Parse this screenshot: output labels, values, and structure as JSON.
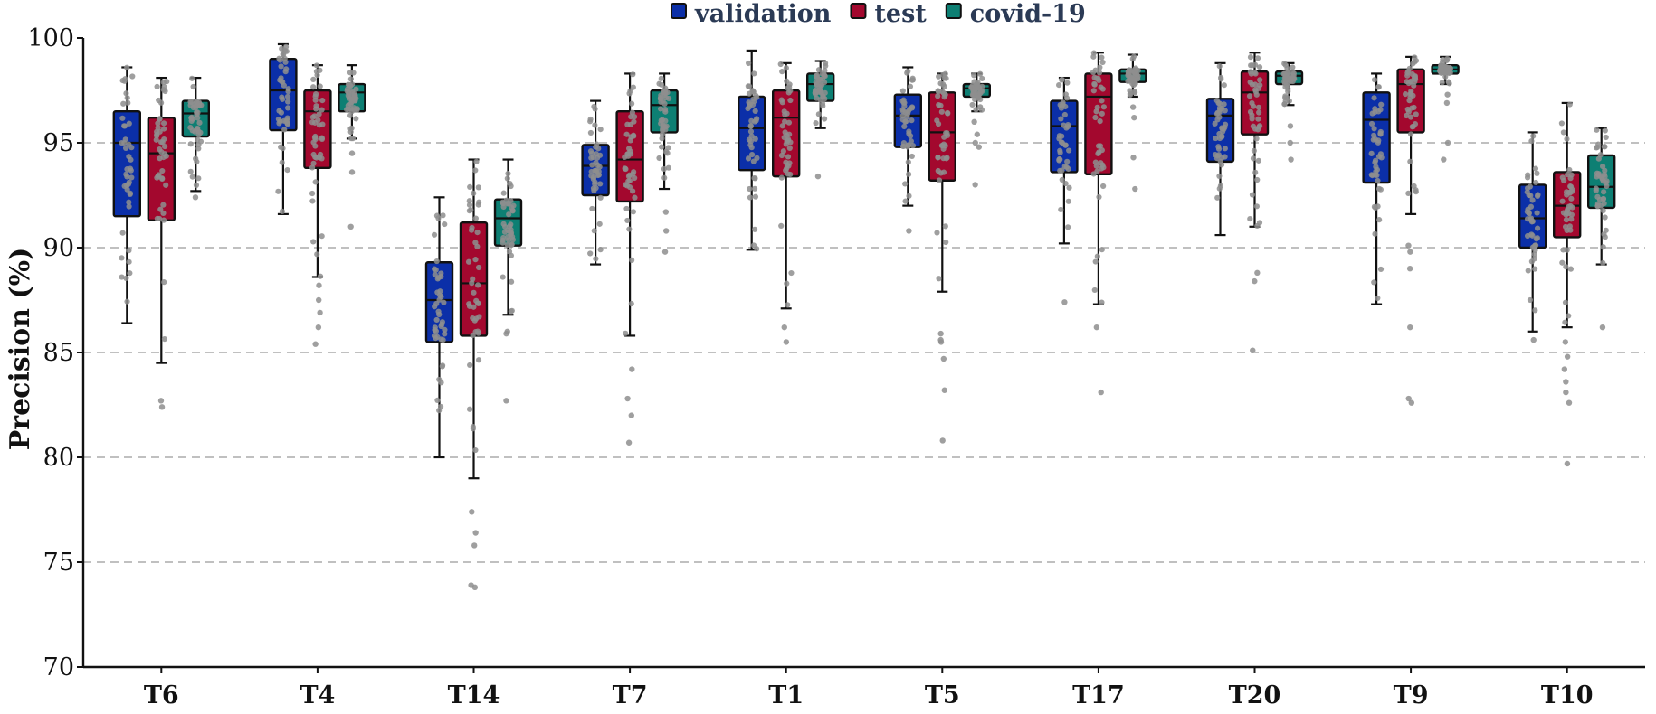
{
  "chart_data": {
    "type": "box",
    "title": "",
    "xlabel": "",
    "ylabel": "Precision (%)",
    "ylim": [
      70,
      100
    ],
    "yticks": [
      70,
      75,
      80,
      85,
      90,
      95,
      100
    ],
    "grid_values": [
      75,
      80,
      85,
      90,
      95
    ],
    "legend_position": "top-center",
    "categories": [
      "T6",
      "T4",
      "T14",
      "T7",
      "T1",
      "T5",
      "T17",
      "T20",
      "T9",
      "T10"
    ],
    "series": [
      {
        "name": "validation",
        "color": "#0b2fa8",
        "boxes": [
          {
            "min": 86.4,
            "q1": 91.5,
            "median": 95.0,
            "q3": 96.5,
            "max": 98.6,
            "outliers": []
          },
          {
            "min": 91.6,
            "q1": 95.6,
            "median": 97.5,
            "q3": 99.0,
            "max": 99.7,
            "outliers": []
          },
          {
            "min": 80.0,
            "q1": 85.5,
            "median": 87.5,
            "q3": 89.3,
            "max": 92.4,
            "outliers": []
          },
          {
            "min": 89.2,
            "q1": 92.5,
            "median": 93.9,
            "q3": 94.9,
            "max": 97.0,
            "outliers": []
          },
          {
            "min": 89.9,
            "q1": 93.7,
            "median": 95.7,
            "q3": 97.2,
            "max": 99.4,
            "outliers": []
          },
          {
            "min": 92.0,
            "q1": 94.8,
            "median": 96.3,
            "q3": 97.3,
            "max": 98.6,
            "outliers": [
              90.8
            ]
          },
          {
            "min": 90.2,
            "q1": 93.6,
            "median": 95.8,
            "q3": 97.0,
            "max": 98.1,
            "outliers": [
              87.4
            ]
          },
          {
            "min": 90.6,
            "q1": 94.1,
            "median": 96.3,
            "q3": 97.1,
            "max": 98.8,
            "outliers": []
          },
          {
            "min": 87.3,
            "q1": 93.1,
            "median": 96.1,
            "q3": 97.4,
            "max": 98.3,
            "outliers": []
          },
          {
            "min": 86.0,
            "q1": 90.0,
            "median": 91.4,
            "q3": 93.0,
            "max": 95.5,
            "outliers": [
              85.6
            ]
          }
        ]
      },
      {
        "name": "test",
        "color": "#a3082e",
        "boxes": [
          {
            "min": 84.5,
            "q1": 91.3,
            "median": 94.5,
            "q3": 96.2,
            "max": 98.1,
            "outliers": [
              82.7,
              82.4
            ]
          },
          {
            "min": 88.6,
            "q1": 93.8,
            "median": 96.5,
            "q3": 97.5,
            "max": 98.7,
            "outliers": [
              88.2,
              87.5,
              86.9,
              86.2,
              85.4
            ]
          },
          {
            "min": 79.0,
            "q1": 85.8,
            "median": 88.3,
            "q3": 91.2,
            "max": 94.2,
            "outliers": [
              77.4,
              76.4,
              75.8,
              73.9,
              73.8
            ]
          },
          {
            "min": 85.8,
            "q1": 92.2,
            "median": 94.2,
            "q3": 96.5,
            "max": 98.3,
            "outliers": [
              84.2,
              82.8,
              82.0,
              80.7
            ]
          },
          {
            "min": 87.1,
            "q1": 93.4,
            "median": 96.2,
            "q3": 97.5,
            "max": 98.8,
            "outliers": [
              86.2,
              85.5
            ]
          },
          {
            "min": 87.9,
            "q1": 93.2,
            "median": 95.5,
            "q3": 97.4,
            "max": 98.3,
            "outliers": [
              85.9,
              85.6,
              85.5,
              84.7,
              83.2,
              80.8
            ]
          },
          {
            "min": 87.3,
            "q1": 93.5,
            "median": 97.2,
            "q3": 98.3,
            "max": 99.3,
            "outliers": [
              86.2,
              83.1
            ]
          },
          {
            "min": 91.0,
            "q1": 95.4,
            "median": 97.4,
            "q3": 98.4,
            "max": 99.3,
            "outliers": [
              88.8,
              88.4,
              85.1
            ]
          },
          {
            "min": 91.6,
            "q1": 95.5,
            "median": 97.8,
            "q3": 98.5,
            "max": 99.1,
            "outliers": [
              90.1,
              89.8,
              89.0,
              86.2,
              82.8,
              82.6
            ]
          },
          {
            "min": 86.2,
            "q1": 90.5,
            "median": 92.0,
            "q3": 93.6,
            "max": 96.9,
            "outliers": [
              85.5,
              84.8,
              84.2,
              83.6,
              83.1,
              82.6,
              79.7
            ]
          }
        ]
      },
      {
        "name": "covid-19",
        "color": "#0d7f73",
        "boxes": [
          {
            "min": 92.7,
            "q1": 95.3,
            "median": 96.4,
            "q3": 97.0,
            "max": 98.1,
            "outliers": [
              92.4
            ]
          },
          {
            "min": 95.2,
            "q1": 96.5,
            "median": 97.4,
            "q3": 97.8,
            "max": 98.7,
            "outliers": [
              94.5,
              93.6,
              91.0
            ]
          },
          {
            "min": 86.8,
            "q1": 90.1,
            "median": 91.4,
            "q3": 92.3,
            "max": 94.2,
            "outliers": [
              86.0,
              85.9,
              82.7
            ]
          },
          {
            "min": 92.8,
            "q1": 95.5,
            "median": 96.8,
            "q3": 97.5,
            "max": 98.3,
            "outliers": [
              91.7,
              90.8,
              89.8
            ]
          },
          {
            "min": 95.7,
            "q1": 97.0,
            "median": 97.8,
            "q3": 98.3,
            "max": 98.9,
            "outliers": [
              93.4
            ]
          },
          {
            "min": 96.5,
            "q1": 97.2,
            "median": 97.6,
            "q3": 97.8,
            "max": 98.3,
            "outliers": [
              96.0,
              95.4,
              95.0,
              94.8,
              93.0
            ]
          },
          {
            "min": 97.2,
            "q1": 97.9,
            "median": 98.3,
            "q3": 98.5,
            "max": 99.2,
            "outliers": [
              96.7,
              96.2,
              94.3,
              92.8
            ]
          },
          {
            "min": 96.8,
            "q1": 97.8,
            "median": 98.2,
            "q3": 98.4,
            "max": 98.8,
            "outliers": [
              95.8,
              95.0,
              94.2
            ]
          },
          {
            "min": 97.8,
            "q1": 98.3,
            "median": 98.5,
            "q3": 98.7,
            "max": 99.1,
            "outliers": [
              97.3,
              96.9,
              95.0,
              94.2
            ]
          },
          {
            "min": 89.2,
            "q1": 91.9,
            "median": 92.9,
            "q3": 94.4,
            "max": 95.7,
            "outliers": [
              86.2
            ]
          }
        ]
      }
    ]
  }
}
